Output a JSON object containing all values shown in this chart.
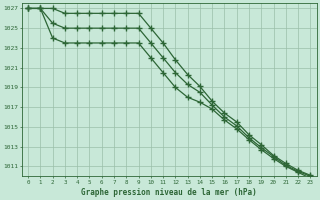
{
  "title": "Graphe pression niveau de la mer (hPa)",
  "bg_color": "#c8e8d8",
  "grid_color": "#9bbfaa",
  "line_color": "#2d6636",
  "xlim": [
    -0.5,
    23.5
  ],
  "ylim": [
    1010.0,
    1027.5
  ],
  "yticks": [
    1011,
    1013,
    1015,
    1017,
    1019,
    1021,
    1023,
    1025,
    1027
  ],
  "xticks": [
    0,
    1,
    2,
    3,
    4,
    5,
    6,
    7,
    8,
    9,
    10,
    11,
    12,
    13,
    14,
    15,
    16,
    17,
    18,
    19,
    20,
    21,
    22,
    23
  ],
  "series": {
    "top": [
      1027.0,
      1027.0,
      1027.0,
      1026.5,
      1026.5,
      1026.5,
      1026.5,
      1026.5,
      1026.5,
      1026.5,
      1025.0,
      1023.5,
      1021.8,
      1020.3,
      1019.1,
      1017.6,
      1016.4,
      1015.5,
      1014.2,
      1013.2,
      1012.1,
      1011.3,
      1010.6,
      1010.1
    ],
    "mid": [
      1027.0,
      1027.0,
      1025.5,
      1025.0,
      1025.0,
      1025.0,
      1025.0,
      1025.0,
      1025.0,
      1025.0,
      1023.5,
      1022.0,
      1020.5,
      1019.3,
      1018.5,
      1017.2,
      1016.0,
      1015.1,
      1013.9,
      1012.9,
      1012.0,
      1011.1,
      1010.5,
      1010.0
    ],
    "bot": [
      1027.0,
      1027.0,
      1024.0,
      1023.5,
      1023.5,
      1023.5,
      1023.5,
      1023.5,
      1023.5,
      1023.5,
      1022.0,
      1020.5,
      1019.0,
      1018.0,
      1017.5,
      1016.8,
      1015.7,
      1014.8,
      1013.7,
      1012.7,
      1011.8,
      1011.0,
      1010.4,
      1009.8
    ]
  }
}
